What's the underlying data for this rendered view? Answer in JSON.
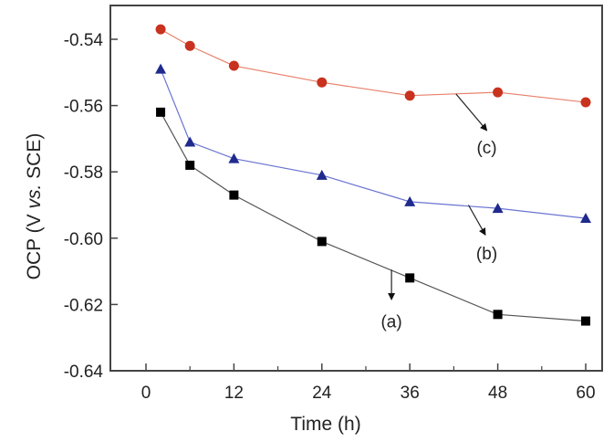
{
  "chart_data": {
    "type": "line",
    "title": "",
    "xlabel": "Time (h)",
    "ylabel_parts": [
      "OCP (V ",
      "vs.",
      " SCE)"
    ],
    "ylabel": "OCP (V vs. SCE)",
    "xlim": [
      -5,
      62.5
    ],
    "ylim": [
      -0.64,
      -0.53
    ],
    "xticks": [
      0,
      12,
      24,
      36,
      48,
      60
    ],
    "xtick_labels": [
      "0",
      "12",
      "24",
      "36",
      "48",
      "60"
    ],
    "yticks": [
      -0.54,
      -0.56,
      -0.58,
      -0.6,
      -0.62,
      -0.64
    ],
    "ytick_labels": [
      "-0.54",
      "-0.56",
      "-0.58",
      "-0.60",
      "-0.62",
      "-0.64"
    ],
    "grid": false,
    "x": [
      2,
      6,
      12,
      24,
      36,
      48,
      60
    ],
    "series": [
      {
        "name": "(a)",
        "marker": "square",
        "color": "#000000",
        "line_color": "#555555",
        "values": [
          -0.562,
          -0.578,
          -0.587,
          -0.601,
          -0.612,
          -0.623,
          -0.625
        ],
        "annotation": {
          "label": "(a)",
          "arrow_from": [
            33.5,
            -0.6095
          ],
          "arrow_to": [
            33.5,
            -0.6185
          ],
          "text_at": [
            33.5,
            -0.625
          ]
        }
      },
      {
        "name": "(b)",
        "marker": "triangle",
        "color": "#1f2a8c",
        "line_color": "#6a74d0",
        "values": [
          -0.549,
          -0.571,
          -0.576,
          -0.581,
          -0.589,
          -0.591,
          -0.594
        ],
        "annotation": {
          "label": "(b)",
          "arrow_from": [
            44,
            -0.59
          ],
          "arrow_to": [
            46.3,
            -0.599
          ],
          "text_at": [
            46.5,
            -0.6045
          ]
        }
      },
      {
        "name": "(c)",
        "marker": "circle",
        "color": "#c8321e",
        "line_color": "#e8806a",
        "values": [
          -0.537,
          -0.542,
          -0.548,
          -0.553,
          -0.557,
          -0.556,
          -0.559
        ],
        "annotation": {
          "label": "(c)",
          "arrow_from": [
            42.3,
            -0.5565
          ],
          "arrow_to": [
            46.5,
            -0.5675
          ],
          "text_at": [
            46.5,
            -0.5725
          ]
        }
      }
    ]
  }
}
